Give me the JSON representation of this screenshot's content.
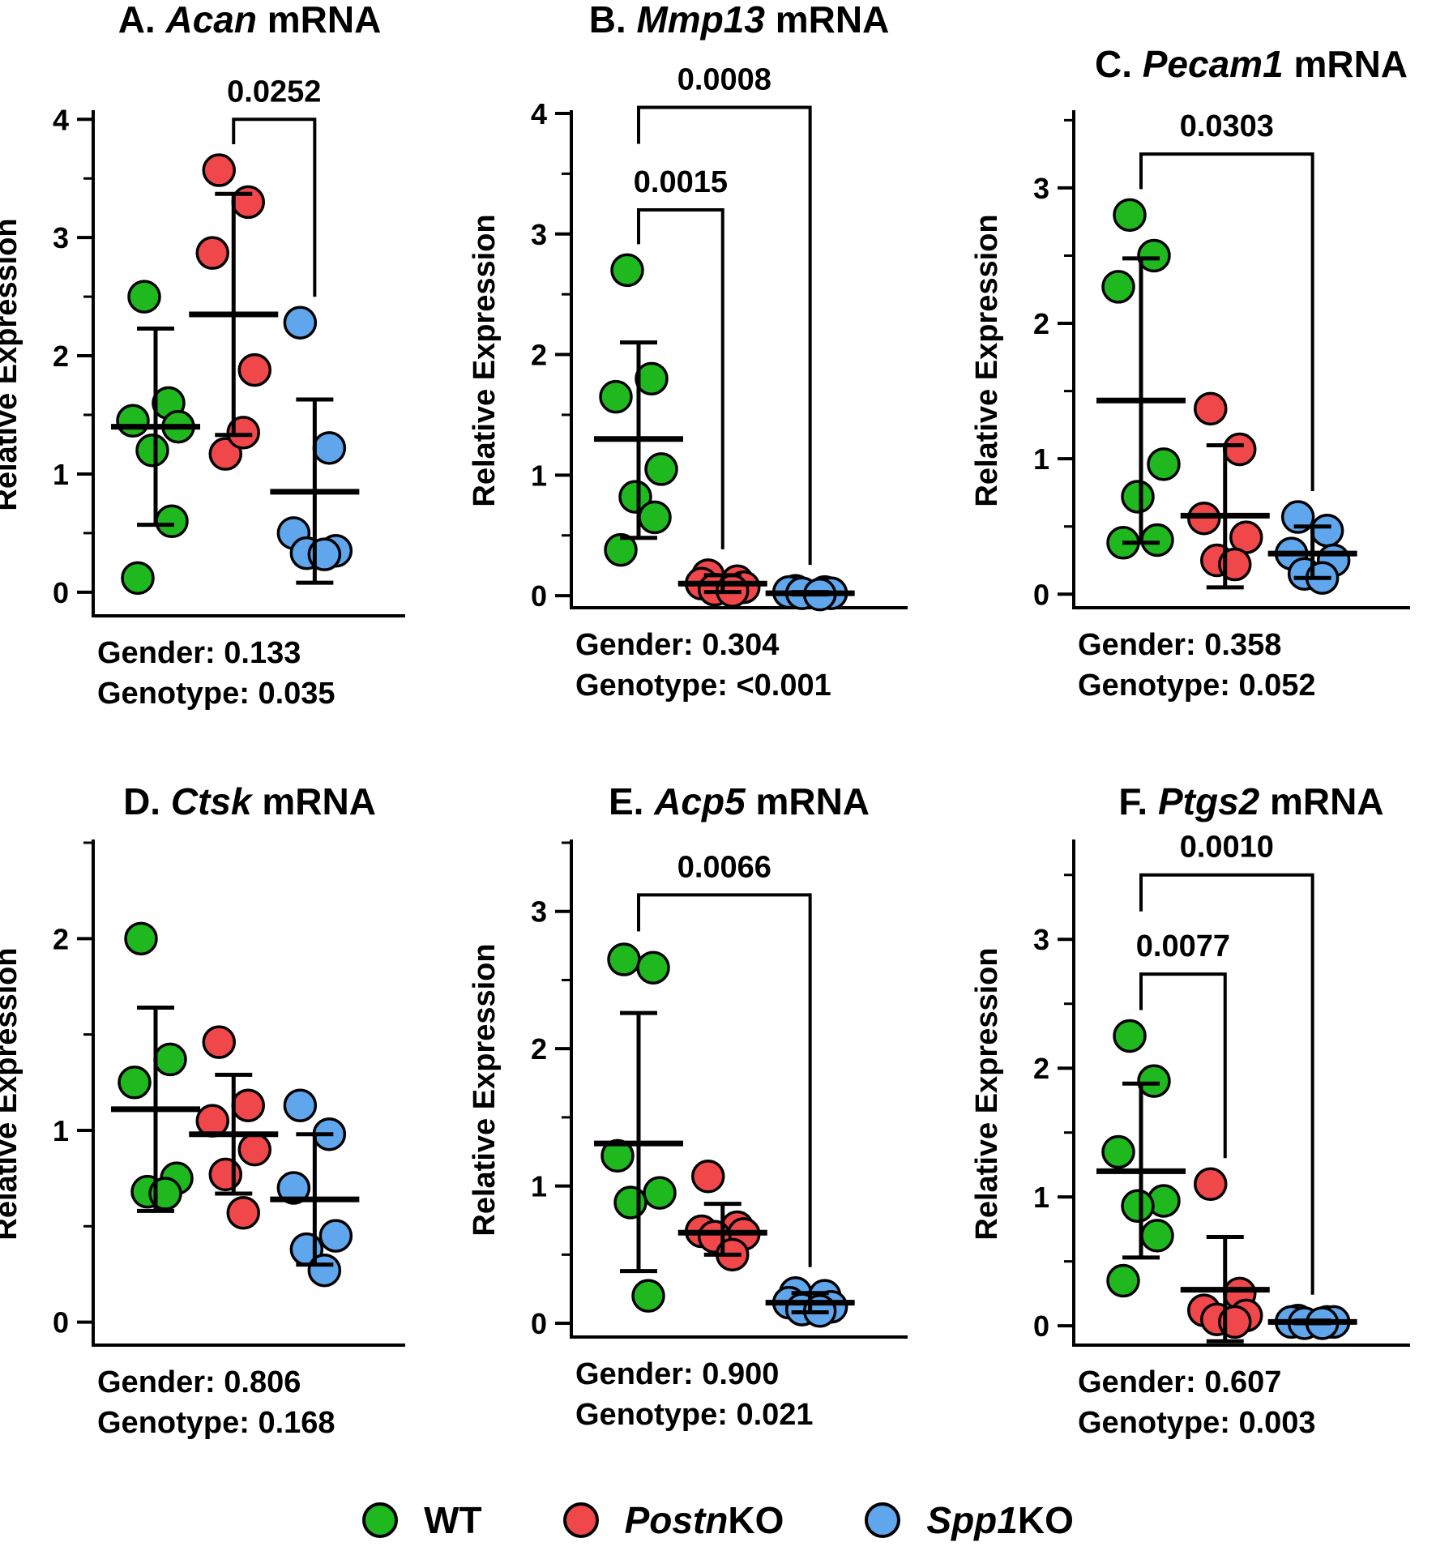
{
  "colors": {
    "WT": "#1fb81f",
    "PostnKO": "#f0474b",
    "Spp1KO": "#5fa6ec"
  },
  "ylabel": "Relative Expression",
  "legend": [
    {
      "key": "WT",
      "italic": "",
      "plain": "WT"
    },
    {
      "key": "PostnKO",
      "italic": "Postn",
      "plain": "KO"
    },
    {
      "key": "Spp1KO",
      "italic": "Spp1",
      "plain": "KO"
    }
  ],
  "chart_data": [
    {
      "type": "scatter",
      "title_prefix": "A. ",
      "gene": "Acan",
      "title_suffix": " mRNA",
      "ylim": [
        -0.2,
        4.05
      ],
      "yticks": [
        0,
        1,
        2,
        3,
        4
      ],
      "minor_step": 0.5,
      "ylabel": "Relative Expression",
      "groups": [
        {
          "name": "WT",
          "points": [
            2.5,
            1.6,
            1.45,
            1.4,
            1.2,
            0.6,
            0.12
          ],
          "mean": 1.4,
          "sd_low": 0.57,
          "sd_high": 2.23
        },
        {
          "name": "PostnKO",
          "points": [
            3.57,
            3.3,
            2.87,
            1.88,
            1.17,
            1.35
          ],
          "mean": 2.35,
          "sd_low": 1.33,
          "sd_high": 3.37
        },
        {
          "name": "Spp1KO",
          "points": [
            2.28,
            1.22,
            0.5,
            0.35,
            0.33,
            0.32
          ],
          "mean": 0.85,
          "sd_low": 0.08,
          "sd_high": 1.63
        }
      ],
      "brackets": [
        {
          "from": 1,
          "to": 2,
          "y": 4.0,
          "label": "0.0252"
        }
      ],
      "stats": [
        {
          "label": "Gender:",
          "value": "0.133"
        },
        {
          "label": "Genotype:",
          "value": "0.035"
        }
      ]
    },
    {
      "type": "scatter",
      "title_prefix": "B. ",
      "gene": "Mmp13",
      "title_suffix": " mRNA",
      "ylim": [
        -0.1,
        4.0
      ],
      "yticks": [
        0,
        1,
        2,
        3,
        4
      ],
      "minor_step": 0.5,
      "ylabel": "Relative Expression",
      "groups": [
        {
          "name": "WT",
          "points": [
            2.7,
            1.8,
            1.65,
            1.05,
            0.82,
            0.65,
            0.38
          ],
          "mean": 1.3,
          "sd_low": 0.48,
          "sd_high": 2.1
        },
        {
          "name": "PostnKO",
          "points": [
            0.17,
            0.12,
            0.1,
            0.07,
            0.05,
            0.04
          ],
          "mean": 0.1,
          "sd_low": 0.03,
          "sd_high": 0.17
        },
        {
          "name": "Spp1KO",
          "points": [
            0.04,
            0.03,
            0.03,
            0.02,
            0.02,
            0.01
          ],
          "mean": 0.02,
          "sd_low": 0.01,
          "sd_high": 0.03
        }
      ],
      "brackets": [
        {
          "from": 0,
          "to": 1,
          "y": 3.2,
          "label": "0.0015"
        },
        {
          "from": 0,
          "to": 2,
          "y": 4.05,
          "label": "0.0008"
        }
      ],
      "stats": [
        {
          "label": "Gender:",
          "value": "0.304"
        },
        {
          "label": "Genotype:",
          "value": "<0.001"
        }
      ]
    },
    {
      "type": "scatter",
      "title_prefix": "C. ",
      "gene": "Pecam1",
      "title_suffix": " mRNA",
      "ylim": [
        -0.1,
        3.55
      ],
      "yticks": [
        0,
        1,
        2,
        3
      ],
      "minor_step": 0.5,
      "ylabel": "Relative Expression",
      "groups": [
        {
          "name": "WT",
          "points": [
            2.8,
            2.5,
            2.27,
            0.96,
            0.72,
            0.4,
            0.38
          ],
          "mean": 1.43,
          "sd_low": 0.38,
          "sd_high": 2.48
        },
        {
          "name": "PostnKO",
          "points": [
            1.37,
            1.07,
            0.56,
            0.42,
            0.25,
            0.22
          ],
          "mean": 0.58,
          "sd_low": 0.05,
          "sd_high": 1.1
        },
        {
          "name": "Spp1KO",
          "points": [
            0.57,
            0.47,
            0.3,
            0.25,
            0.15,
            0.12
          ],
          "mean": 0.3,
          "sd_low": 0.12,
          "sd_high": 0.5
        }
      ],
      "brackets": [
        {
          "from": 0,
          "to": 2,
          "y": 3.25,
          "label": "0.0303"
        }
      ],
      "stats": [
        {
          "label": "Gender:",
          "value": "0.358"
        },
        {
          "label": "Genotype:",
          "value": "0.052"
        }
      ]
    },
    {
      "type": "scatter",
      "title_prefix": "D. ",
      "gene": "Ctsk",
      "title_suffix": " mRNA",
      "ylim": [
        -0.12,
        2.5
      ],
      "yticks": [
        0,
        1,
        2
      ],
      "minor_step": 0.5,
      "ylabel": "Relative Expression",
      "groups": [
        {
          "name": "WT",
          "points": [
            2.0,
            1.37,
            1.25,
            0.75,
            0.68,
            0.67
          ],
          "mean": 1.11,
          "sd_low": 0.58,
          "sd_high": 1.64
        },
        {
          "name": "PostnKO",
          "points": [
            1.46,
            1.13,
            1.05,
            0.9,
            0.77,
            0.57
          ],
          "mean": 0.98,
          "sd_low": 0.67,
          "sd_high": 1.29
        },
        {
          "name": "Spp1KO",
          "points": [
            1.13,
            0.98,
            0.7,
            0.45,
            0.38,
            0.27
          ],
          "mean": 0.64,
          "sd_low": 0.3,
          "sd_high": 0.98
        }
      ],
      "brackets": [],
      "stats": [
        {
          "label": "Gender:",
          "value": "0.806"
        },
        {
          "label": "Genotype:",
          "value": "0.168"
        }
      ]
    },
    {
      "type": "scatter",
      "title_prefix": "E. ",
      "gene": "Acp5",
      "title_suffix": " mRNA",
      "ylim": [
        -0.1,
        3.5
      ],
      "yticks": [
        0,
        1,
        2,
        3
      ],
      "minor_step": 0.5,
      "ylabel": "Relative Expression",
      "groups": [
        {
          "name": "WT",
          "points": [
            2.65,
            2.59,
            1.22,
            0.95,
            0.88,
            0.2
          ],
          "mean": 1.31,
          "sd_low": 0.38,
          "sd_high": 2.26
        },
        {
          "name": "PostnKO",
          "points": [
            1.07,
            0.7,
            0.67,
            0.65,
            0.63,
            0.5
          ],
          "mean": 0.66,
          "sd_low": 0.5,
          "sd_high": 0.87
        },
        {
          "name": "Spp1KO",
          "points": [
            0.22,
            0.2,
            0.15,
            0.12,
            0.1,
            0.09
          ],
          "mean": 0.15,
          "sd_low": 0.08,
          "sd_high": 0.22
        }
      ],
      "brackets": [
        {
          "from": 0,
          "to": 2,
          "y": 3.12,
          "label": "0.0066"
        }
      ],
      "stats": [
        {
          "label": "Gender:",
          "value": "0.900"
        },
        {
          "label": "Genotype:",
          "value": "0.021"
        }
      ]
    },
    {
      "type": "scatter",
      "title_prefix": "F. ",
      "gene": "Ptgs2",
      "title_suffix": " mRNA",
      "ylim": [
        -0.15,
        3.75
      ],
      "yticks": [
        0,
        1,
        2,
        3
      ],
      "minor_step": 0.5,
      "ylabel": "Relative Expression",
      "groups": [
        {
          "name": "WT",
          "points": [
            2.25,
            1.9,
            1.35,
            0.97,
            0.93,
            0.7,
            0.35
          ],
          "mean": 1.2,
          "sd_low": 0.53,
          "sd_high": 1.88
        },
        {
          "name": "PostnKO",
          "points": [
            1.1,
            0.25,
            0.12,
            0.08,
            0.05,
            0.03
          ],
          "mean": 0.28,
          "sd_low": -0.12,
          "sd_high": 0.69
        },
        {
          "name": "Spp1KO",
          "points": [
            0.04,
            0.03,
            0.03,
            0.03,
            0.02,
            0.02
          ],
          "mean": 0.03,
          "sd_low": 0.02,
          "sd_high": 0.04
        }
      ],
      "brackets": [
        {
          "from": 0,
          "to": 1,
          "y": 2.73,
          "label": "0.0077"
        },
        {
          "from": 0,
          "to": 2,
          "y": 3.5,
          "label": "0.0010"
        }
      ],
      "stats": [
        {
          "label": "Gender:",
          "value": "0.607"
        },
        {
          "label": "Genotype:",
          "value": "0.003"
        }
      ]
    }
  ]
}
